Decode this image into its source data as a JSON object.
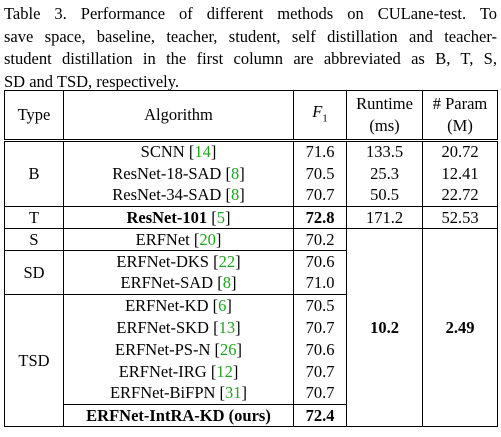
{
  "caption": {
    "line1": "Table 3. Performance of different methods on CULane-test.  To",
    "line2": "save space, baseline, teacher, student, self distillation and teacher-",
    "line3": "student distillation in the first column are abbreviated as B, T, S,",
    "line4": "SD and TSD, respectively."
  },
  "header": {
    "type": "Type",
    "algorithm": "Algorithm",
    "f1_main": "F",
    "f1_sub": "1",
    "runtime_line1": "Runtime",
    "runtime_line2": "(ms)",
    "param_line1": "# Param",
    "param_line2": "(M)"
  },
  "groups": {
    "B": "B",
    "T": "T",
    "S": "S",
    "SD": "SD",
    "TSD": "TSD"
  },
  "rows": [
    {
      "name": "SCNN",
      "ref": "14",
      "f1": "71.6",
      "runtime": "133.5",
      "param": "20.72"
    },
    {
      "name": "ResNet-18-SAD",
      "ref": "8",
      "f1": "70.5",
      "runtime": "25.3",
      "param": "12.41"
    },
    {
      "name": "ResNet-34-SAD",
      "ref": "8",
      "f1": "70.7",
      "runtime": "50.5",
      "param": "22.72"
    },
    {
      "name": "ResNet-101",
      "ref": "5",
      "f1": "72.8",
      "runtime": "171.2",
      "param": "52.53"
    },
    {
      "name": "ERFNet",
      "ref": "20",
      "f1": "70.2"
    },
    {
      "name": "ERFNet-DKS",
      "ref": "22",
      "f1": "70.6"
    },
    {
      "name": "ERFNet-SAD",
      "ref": "8",
      "f1": "71.0"
    },
    {
      "name": "ERFNet-KD",
      "ref": "6",
      "f1": "70.5"
    },
    {
      "name": "ERFNet-SKD",
      "ref": "13",
      "f1": "70.7"
    },
    {
      "name": "ERFNet-PS-N",
      "ref": "26",
      "f1": "70.6"
    },
    {
      "name": "ERFNet-IRG",
      "ref": "12",
      "f1": "70.7"
    },
    {
      "name": "ERFNet-BiFPN",
      "ref": "31",
      "f1": "70.7"
    },
    {
      "name": "ERFNet-IntRA-KD (ours)",
      "f1": "72.4"
    }
  ],
  "shared": {
    "runtime": "10.2",
    "param": "2.49"
  },
  "colors": {
    "ref": "#1fa51f"
  }
}
